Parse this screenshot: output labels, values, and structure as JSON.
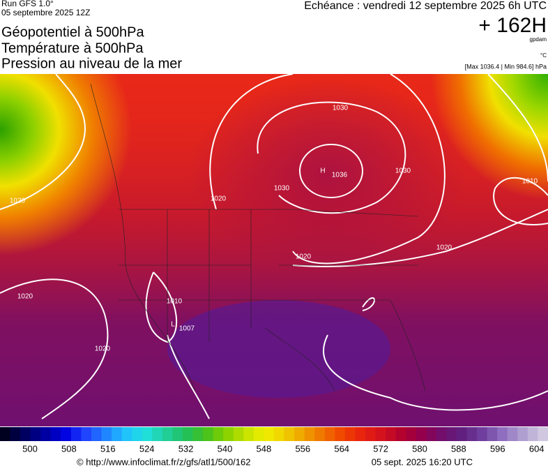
{
  "header": {
    "run": "Run GFS 1.0°",
    "date": "05 septembre 2025 12Z",
    "titles": [
      "Géopotentiel à 500hPa",
      "Température à 500hPa",
      "Pression au niveau de la mer"
    ],
    "echeance": "Echéance : vendredi 12 septembre 2025 6h UTC",
    "lead": "+ 162H",
    "unit_geo": "gpdam",
    "unit_temp": "°C",
    "range": "[Max 1036.4 | Min 984.6] hPa"
  },
  "map": {
    "labels": [
      "H",
      "1036",
      "L",
      "1007",
      "1030",
      "1030",
      "1030",
      "1020",
      "1020",
      "1020",
      "1020",
      "1020",
      "1010",
      "1010",
      "1020"
    ]
  },
  "colorbar": {
    "labels": [
      500,
      508,
      516,
      524,
      532,
      540,
      548,
      556,
      564,
      572,
      580,
      588,
      596,
      604
    ]
  },
  "footer": {
    "url": "© http://www.infoclimat.fr/z/gfs/atl1/500/162",
    "generated": "05 sept. 2025 16:20 UTC"
  }
}
